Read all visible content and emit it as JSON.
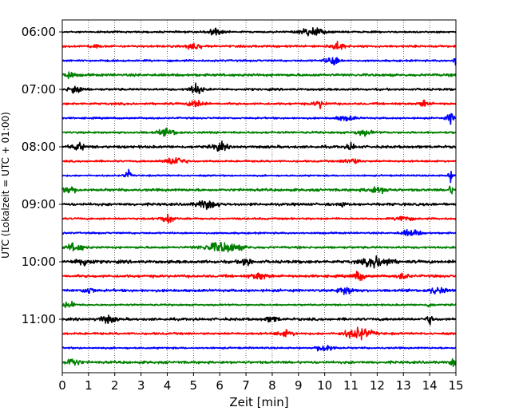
{
  "chart_data": {
    "type": "line",
    "xlabel": "Zeit  [min]",
    "ylabel": "UTC (Lokalzeit = UTC + 01:00)",
    "xlim": [
      0,
      15
    ],
    "x_ticks": [
      "0",
      "1",
      "2",
      "3",
      "4",
      "5",
      "6",
      "7",
      "8",
      "9",
      "10",
      "11",
      "12",
      "13",
      "14",
      "15"
    ],
    "y_tick_labels": [
      "06:00",
      "07:00",
      "08:00",
      "09:00",
      "10:00",
      "11:00"
    ],
    "grid": "vertical dotted",
    "trace_colors": [
      "#000000",
      "#ff0000",
      "#0000ff",
      "#008000"
    ],
    "traces": [
      {
        "start": "06:00",
        "color": "#000000",
        "base": 0.2,
        "events": [
          [
            5.8,
            0.3,
            0.9
          ],
          [
            9.5,
            0.45,
            1.0
          ]
        ]
      },
      {
        "start": "06:15",
        "color": "#ff0000",
        "base": 0.25,
        "events": [
          [
            5.0,
            0.25,
            1.0
          ],
          [
            1.2,
            0.2,
            0.4
          ],
          [
            10.5,
            0.25,
            1.0
          ]
        ]
      },
      {
        "start": "06:30",
        "color": "#0000ff",
        "base": 0.22,
        "events": [
          [
            10.3,
            0.25,
            1.2
          ],
          [
            15.0,
            0.1,
            1.0
          ]
        ]
      },
      {
        "start": "06:45",
        "color": "#008000",
        "base": 0.3,
        "events": [
          [
            0.2,
            0.25,
            0.8
          ]
        ]
      },
      {
        "start": "07:00",
        "color": "#000000",
        "base": 0.25,
        "events": [
          [
            0.5,
            0.25,
            1.1
          ],
          [
            5.1,
            0.25,
            1.2
          ]
        ]
      },
      {
        "start": "07:15",
        "color": "#ff0000",
        "base": 0.25,
        "events": [
          [
            5.1,
            0.25,
            1.0
          ],
          [
            9.8,
            0.2,
            0.9
          ],
          [
            13.8,
            0.2,
            0.7
          ]
        ]
      },
      {
        "start": "07:30",
        "color": "#0000ff",
        "base": 0.2,
        "events": [
          [
            10.8,
            0.35,
            0.6
          ],
          [
            14.8,
            0.15,
            1.2
          ]
        ]
      },
      {
        "start": "07:45",
        "color": "#008000",
        "base": 0.25,
        "events": [
          [
            4.0,
            0.35,
            0.7
          ],
          [
            11.5,
            0.3,
            0.6
          ]
        ]
      },
      {
        "start": "08:00",
        "color": "#000000",
        "base": 0.3,
        "events": [
          [
            0.6,
            0.25,
            0.8
          ],
          [
            6.0,
            0.25,
            1.0
          ],
          [
            11.0,
            0.15,
            0.8
          ]
        ]
      },
      {
        "start": "08:15",
        "color": "#ff0000",
        "base": 0.22,
        "events": [
          [
            4.3,
            0.35,
            1.1
          ],
          [
            11.0,
            0.3,
            0.7
          ]
        ]
      },
      {
        "start": "08:30",
        "color": "#0000ff",
        "base": 0.18,
        "events": [
          [
            2.5,
            0.12,
            1.2
          ],
          [
            14.8,
            0.1,
            1.2
          ]
        ]
      },
      {
        "start": "08:45",
        "color": "#008000",
        "base": 0.3,
        "events": [
          [
            0.2,
            0.3,
            0.9
          ],
          [
            12.0,
            0.4,
            0.7
          ],
          [
            14.8,
            0.1,
            0.9
          ]
        ]
      },
      {
        "start": "09:00",
        "color": "#000000",
        "base": 0.3,
        "events": [
          [
            5.5,
            0.4,
            0.9
          ],
          [
            10.7,
            0.1,
            0.7
          ]
        ]
      },
      {
        "start": "09:15",
        "color": "#ff0000",
        "base": 0.22,
        "events": [
          [
            4.0,
            0.25,
            1.0
          ],
          [
            13.0,
            0.25,
            0.9
          ]
        ]
      },
      {
        "start": "09:30",
        "color": "#0000ff",
        "base": 0.2,
        "events": [
          [
            13.3,
            0.35,
            0.8
          ]
        ]
      },
      {
        "start": "09:45",
        "color": "#008000",
        "base": 0.25,
        "events": [
          [
            0.5,
            0.3,
            1.0
          ],
          [
            6.1,
            0.7,
            1.2
          ]
        ]
      },
      {
        "start": "10:00",
        "color": "#000000",
        "base": 0.35,
        "events": [
          [
            0.8,
            0.3,
            0.9
          ],
          [
            7.0,
            0.2,
            1.0
          ],
          [
            12.0,
            0.5,
            1.3
          ]
        ]
      },
      {
        "start": "10:15",
        "color": "#ff0000",
        "base": 0.3,
        "events": [
          [
            7.5,
            0.3,
            0.8
          ],
          [
            11.3,
            0.2,
            1.1
          ],
          [
            13.0,
            0.2,
            0.7
          ]
        ]
      },
      {
        "start": "10:30",
        "color": "#0000ff",
        "base": 0.3,
        "events": [
          [
            1.0,
            0.2,
            0.8
          ],
          [
            10.8,
            0.3,
            0.9
          ],
          [
            14.3,
            0.3,
            0.8
          ]
        ]
      },
      {
        "start": "10:45",
        "color": "#008000",
        "base": 0.2,
        "events": [
          [
            0.3,
            0.2,
            0.9
          ],
          [
            14.0,
            0.1,
            0.7
          ]
        ]
      },
      {
        "start": "11:00",
        "color": "#000000",
        "base": 0.3,
        "events": [
          [
            1.7,
            0.3,
            0.9
          ],
          [
            8.0,
            0.25,
            0.6
          ],
          [
            14.0,
            0.15,
            1.0
          ]
        ]
      },
      {
        "start": "11:15",
        "color": "#ff0000",
        "base": 0.25,
        "events": [
          [
            8.5,
            0.3,
            0.7
          ],
          [
            11.3,
            0.5,
            1.3
          ]
        ]
      },
      {
        "start": "11:30",
        "color": "#0000ff",
        "base": 0.2,
        "events": [
          [
            10.0,
            0.3,
            1.0
          ]
        ]
      },
      {
        "start": "11:45",
        "color": "#008000",
        "base": 0.3,
        "events": [
          [
            0.4,
            0.25,
            1.0
          ],
          [
            14.9,
            0.1,
            1.0
          ]
        ]
      }
    ]
  }
}
